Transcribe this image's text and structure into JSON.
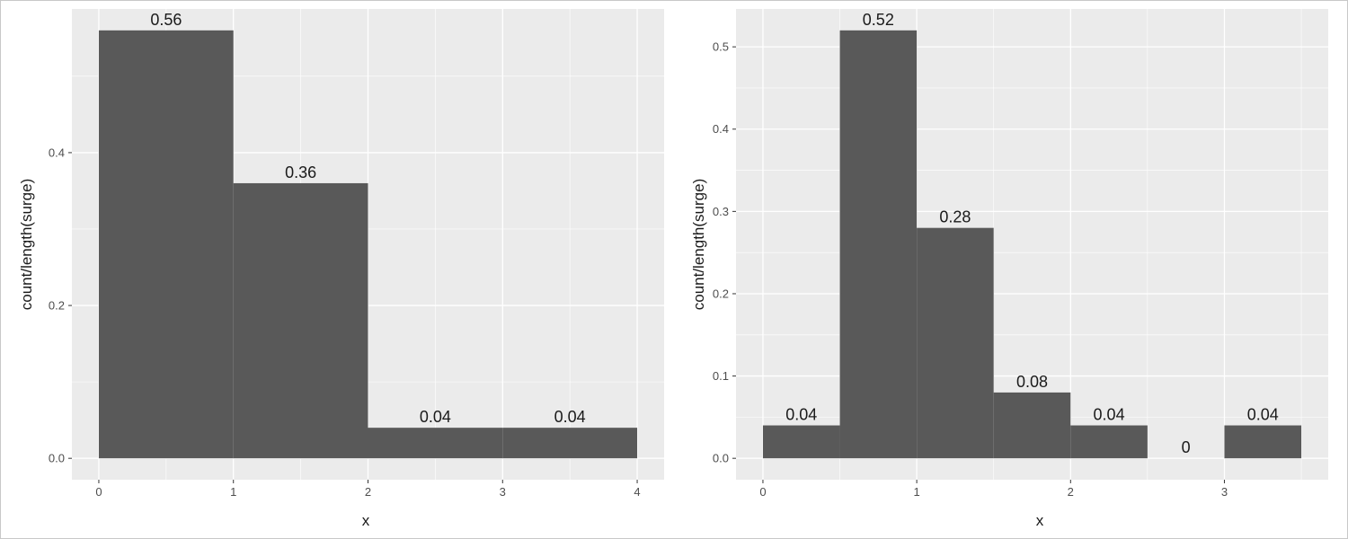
{
  "chart_data": [
    {
      "type": "bar",
      "xlabel": "x",
      "ylabel": "count/length(surge)",
      "xlim": [
        -0.2,
        4.2
      ],
      "ylim": [
        -0.028,
        0.588
      ],
      "x_ticks": [
        "0",
        "1",
        "2",
        "3",
        "4"
      ],
      "x_tick_values": [
        0,
        1,
        2,
        3,
        4
      ],
      "y_ticks": [
        "0.0",
        "0.2",
        "0.4"
      ],
      "y_tick_values": [
        0.0,
        0.2,
        0.4
      ],
      "grid": true,
      "bars": [
        {
          "x0": 0,
          "x1": 1,
          "value": 0.56,
          "label": "0.56"
        },
        {
          "x0": 1,
          "x1": 2,
          "value": 0.36,
          "label": "0.36"
        },
        {
          "x0": 2,
          "x1": 3,
          "value": 0.04,
          "label": "0.04"
        },
        {
          "x0": 3,
          "x1": 4,
          "value": 0.04,
          "label": "0.04"
        }
      ]
    },
    {
      "type": "bar",
      "xlabel": "x",
      "ylabel": "count/length(surge)",
      "xlim": [
        -0.175,
        3.675
      ],
      "ylim": [
        -0.026,
        0.546
      ],
      "x_ticks": [
        "0",
        "1",
        "2",
        "3"
      ],
      "x_tick_values": [
        0,
        1,
        2,
        3
      ],
      "y_ticks": [
        "0.0",
        "0.1",
        "0.2",
        "0.3",
        "0.4",
        "0.5"
      ],
      "y_tick_values": [
        0.0,
        0.1,
        0.2,
        0.3,
        0.4,
        0.5
      ],
      "grid": true,
      "bars": [
        {
          "x0": 0.0,
          "x1": 0.5,
          "value": 0.04,
          "label": "0.04"
        },
        {
          "x0": 0.5,
          "x1": 1.0,
          "value": 0.52,
          "label": "0.52"
        },
        {
          "x0": 1.0,
          "x1": 1.5,
          "value": 0.28,
          "label": "0.28"
        },
        {
          "x0": 1.5,
          "x1": 2.0,
          "value": 0.08,
          "label": "0.08"
        },
        {
          "x0": 2.0,
          "x1": 2.5,
          "value": 0.04,
          "label": "0.04"
        },
        {
          "x0": 2.5,
          "x1": 3.0,
          "value": 0,
          "label": "0"
        },
        {
          "x0": 3.0,
          "x1": 3.5,
          "value": 0.04,
          "label": "0.04"
        }
      ]
    }
  ],
  "colors": {
    "panel_bg": "#ebebeb",
    "grid_major": "#ffffff",
    "bar_fill": "#595959",
    "tick": "#333333"
  }
}
